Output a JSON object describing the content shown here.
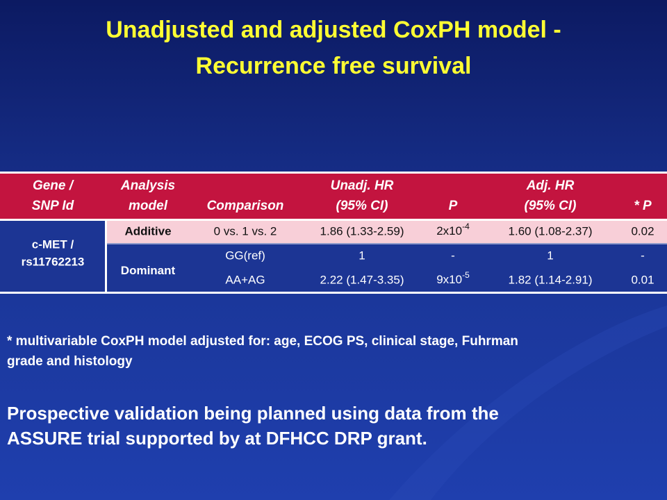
{
  "title": [
    "Unadjusted and adjusted CoxPH model -",
    "Recurrence free survival"
  ],
  "table": {
    "header": [
      [
        "Gene /",
        "SNP Id"
      ],
      [
        "Analysis",
        "model"
      ],
      [
        "Comparison"
      ],
      [
        "Unadj. HR",
        "(95% CI)"
      ],
      [
        "P"
      ],
      [
        "Adj. HR",
        "(95% CI)"
      ],
      [
        "* P"
      ]
    ],
    "gene": [
      "c-MET /",
      "rs11762213"
    ],
    "groups": [
      {
        "model": "Additive",
        "rows": [
          [
            "0 vs. 1 vs. 2",
            "1.86 (1.33-2.59)",
            {
              "base": "2x10",
              "exp": "-4"
            },
            "1.60 (1.08-2.37)",
            "0.02"
          ]
        ]
      },
      {
        "model": "Dominant",
        "rows": [
          [
            "GG(ref)",
            "1",
            "-",
            "1",
            "-"
          ],
          [
            "AA+AG",
            "2.22 (1.47-3.35)",
            {
              "base": "9x10",
              "exp": "-5"
            },
            "1.82 (1.14-2.91)",
            "0.01"
          ]
        ]
      }
    ]
  },
  "footnote": [
    "* multivariable CoxPH model adjusted for: age, ECOG PS, clinical stage, Fuhrman",
    "grade and histology"
  ],
  "conclusion": [
    "Prospective validation being planned using data from the",
    "ASSURE trial supported by at DFHCC DRP grant."
  ]
}
